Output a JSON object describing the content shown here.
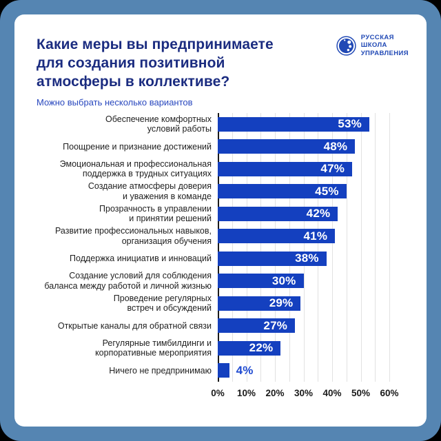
{
  "frame": {
    "outer_background": "#000000",
    "frame_color": "#5585B2",
    "card_background": "#FFFFFF"
  },
  "header": {
    "title": "Какие меры вы предпринимаете\nдля создания позитивной\nатмосферы в коллективе?",
    "subtitle": "Можно выбрать несколько вариантов",
    "logo_text": "РУССКАЯ\nШКОЛА\nУПРАВЛЕНИЯ",
    "title_color": "#1B2C80",
    "subtitle_color": "#2847BE",
    "logo_color": "#2149B5"
  },
  "chart_data": {
    "type": "bar",
    "orientation": "horizontal",
    "title": "Какие меры вы предпринимаете для создания позитивной атмосферы в коллективе?",
    "subtitle": "Можно выбрать несколько вариантов",
    "categories": [
      "Обеспечение комфортных\nусловий работы",
      "Поощрение и признание достижений",
      "Эмоциональная и профессиональная\nподдержка в трудных ситуациях",
      "Создание атмосферы доверия\nи уважения в команде",
      "Прозрачность в управлении\nи принятии решений",
      "Развитие профессиональных навыков,\nорганизация обучения",
      "Поддержка инициатив и инноваций",
      "Создание условий для соблюдения\nбаланса между работой и личной жизнью",
      "Проведение регулярных\nвстреч и обсуждений",
      "Открытые каналы для обратной связи",
      "Регулярные тимбилдинги и\nкорпоративные мероприятия",
      "Ничего не предпринимаю"
    ],
    "values": [
      53,
      48,
      47,
      45,
      42,
      41,
      38,
      30,
      29,
      27,
      22,
      4
    ],
    "value_labels": [
      "53%",
      "48%",
      "47%",
      "45%",
      "42%",
      "41%",
      "38%",
      "30%",
      "29%",
      "27%",
      "22%",
      "4%"
    ],
    "xlim": [
      0,
      60
    ],
    "x_tick_values": [
      0,
      10,
      20,
      30,
      40,
      50,
      60
    ],
    "x_ticks": [
      "0%",
      "10%",
      "20%",
      "30%",
      "40%",
      "50%",
      "60%"
    ],
    "grid_step_pct": 5,
    "grid": true,
    "bar_color": "#1440BF",
    "value_label_inside_color": "#FFFFFF",
    "value_label_outside_color": "#1E4AD1",
    "inside_label_min_value": 10,
    "legend_position": "none",
    "xlabel": "",
    "ylabel": ""
  }
}
